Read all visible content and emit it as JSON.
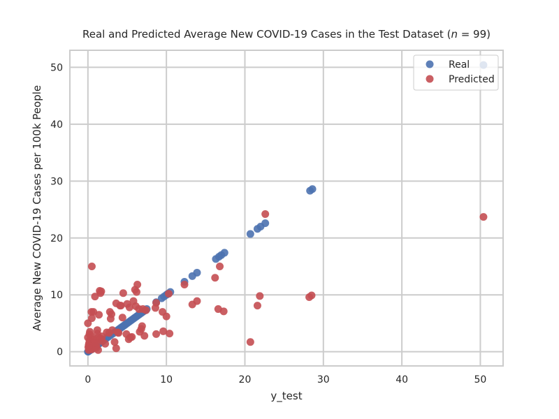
{
  "chart_data": {
    "type": "scatter",
    "title_prefix": "Real and Predicted Average New COVID-19 Cases in the Test Dataset (",
    "title_italic": "n",
    "title_suffix": "  = 99)",
    "xlabel": "y_test",
    "ylabel": "Average New COVID-19 Cases per 100k People",
    "xlim": [
      -2.3,
      52.9
    ],
    "ylim": [
      -2.5,
      53
    ],
    "xticks": [
      0,
      10,
      20,
      30,
      40,
      50
    ],
    "yticks": [
      0,
      10,
      20,
      30,
      40,
      50
    ],
    "grid": true,
    "legend_position": "top-right",
    "colors": {
      "real": "#4c72b0",
      "predicted": "#c44e52",
      "grid": "#cccccc",
      "spine": "#cccccc"
    },
    "series": [
      {
        "name": "Real",
        "color": "#4c72b0",
        "x": [
          0,
          0.05,
          0.1,
          0.15,
          0.2,
          0.25,
          0.3,
          0.35,
          0.4,
          0.45,
          0.5,
          0.6,
          0.7,
          0.8,
          0.9,
          1.0,
          1.1,
          1.2,
          1.3,
          1.4,
          1.5,
          1.6,
          1.7,
          1.8,
          1.9,
          2.0,
          2.3,
          2.6,
          2.9,
          3.2,
          3.5,
          3.8,
          4.0,
          4.2,
          4.4,
          4.6,
          4.8,
          5.0,
          5.2,
          5.4,
          5.6,
          5.8,
          6.0,
          6.2,
          6.4,
          6.6,
          6.8,
          7.0,
          7.2,
          7.5,
          8.7,
          9.4,
          9.7,
          10.0,
          10.2,
          10.5,
          12.3,
          13.3,
          13.9,
          16.3,
          16.7,
          17.0,
          17.4,
          20.7,
          21.6,
          22.0,
          22.6,
          28.3,
          28.6,
          50.4
        ],
        "y": [
          0,
          0.05,
          0.1,
          0.15,
          0.2,
          0.25,
          0.3,
          0.35,
          0.4,
          0.45,
          0.5,
          0.6,
          0.7,
          0.8,
          0.9,
          1.0,
          1.1,
          1.2,
          1.3,
          1.4,
          1.5,
          1.6,
          1.7,
          1.8,
          1.9,
          2.0,
          2.3,
          2.6,
          2.9,
          3.2,
          3.5,
          3.8,
          4.0,
          4.2,
          4.4,
          4.6,
          4.8,
          5.0,
          5.2,
          5.4,
          5.6,
          5.8,
          6.0,
          6.2,
          6.4,
          6.6,
          6.8,
          7.0,
          7.2,
          7.5,
          8.7,
          9.4,
          9.7,
          10.0,
          10.2,
          10.5,
          12.3,
          13.3,
          13.9,
          16.3,
          16.7,
          17.0,
          17.4,
          20.7,
          21.6,
          22.0,
          22.6,
          28.3,
          28.6,
          50.4
        ]
      },
      {
        "name": "Predicted",
        "color": "#c44e52",
        "x": [
          0,
          0.05,
          0.1,
          0.1,
          0.15,
          0.2,
          0.25,
          0.3,
          0.35,
          0.4,
          0.45,
          0.5,
          0.55,
          0.6,
          0.7,
          0.8,
          0.9,
          1.0,
          1.1,
          1.2,
          1.3,
          1.4,
          1.5,
          1.6,
          1.8,
          2.2,
          0,
          0.3,
          0.5,
          0.8,
          0.9,
          1.3,
          1.1,
          1.6,
          1.7,
          1.8,
          1.2,
          2.8,
          3.0,
          2.9,
          3.1,
          3.6,
          4.5,
          4.1,
          3.9,
          5.0,
          5.3,
          4.4,
          4.2,
          5.8,
          6.0,
          6.1,
          6.3,
          6.5,
          7.0,
          7.4,
          6.9,
          6.8,
          8.7,
          9.5,
          10.0,
          10.3,
          12.3,
          13.3,
          13.9,
          16.2,
          16.8,
          16.6,
          17.3,
          20.7,
          21.6,
          21.9,
          22.6,
          28.2,
          28.5,
          50.4,
          0.5,
          3.6,
          3.4,
          4.9,
          5.2,
          5.6,
          7.2,
          8.7,
          9.6,
          10.4,
          6.2,
          2.7,
          1.6,
          0.9,
          5.4,
          6.6,
          2.4,
          8.6,
          3.8,
          0.2
        ],
        "y": [
          5.0,
          0.8,
          1.2,
          0.3,
          1.5,
          2.0,
          3.5,
          1.0,
          2.8,
          0.6,
          7.0,
          0.4,
          1.8,
          2.2,
          7.0,
          1.5,
          9.7,
          0.9,
          1.3,
          3.8,
          2.5,
          6.5,
          10.7,
          10.3,
          2.7,
          1.4,
          2.5,
          0.5,
          5.9,
          2.0,
          1.0,
          0.3,
          0.7,
          2.3,
          10.6,
          1.9,
          3.2,
          7.0,
          6.6,
          5.8,
          3.8,
          8.5,
          10.3,
          8.1,
          3.3,
          8.4,
          7.8,
          6.0,
          8.1,
          8.9,
          10.9,
          8.0,
          11.8,
          7.5,
          7.5,
          7.3,
          4.5,
          4.0,
          8.6,
          7.0,
          6.2,
          10.2,
          11.8,
          8.3,
          8.9,
          13.0,
          15.0,
          7.5,
          7.1,
          1.7,
          8.1,
          9.8,
          24.2,
          9.6,
          9.9,
          23.7,
          15.0,
          0.6,
          1.7,
          3.1,
          2.2,
          2.6,
          2.8,
          3.1,
          3.6,
          3.2,
          10.5,
          3.3,
          2.3,
          1.6,
          2.5,
          3.5,
          3.4,
          7.7,
          3.4,
          3.1
        ]
      }
    ]
  }
}
